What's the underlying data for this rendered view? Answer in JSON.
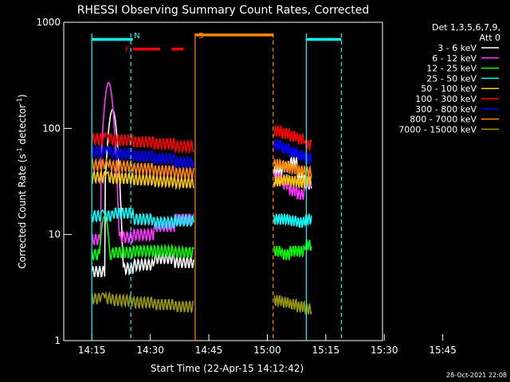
{
  "chart_data": {
    "type": "line",
    "title": "RHESSI Observing Summary Count Rates, Corrected",
    "xlabel": "Start Time (22-Apr-15 14:12:42)",
    "ylabel": "Corrected Count Rate (s",
    "ylabel_sup1": "-1",
    "ylabel_mid": " detector",
    "ylabel_sup2": "-1",
    "ylabel_end": ")",
    "y_scale": "log",
    "ylim": [
      1,
      1000
    ],
    "xlim_minutes": [
      0,
      68
    ],
    "x_ticks": [
      {
        "label": "14:15",
        "min": 2.3
      },
      {
        "label": "14:30",
        "min": 17.3
      },
      {
        "label": "14:45",
        "min": 32.3
      },
      {
        "label": "15:00",
        "min": 47.3
      },
      {
        "label": "15:15",
        "min": 62.3
      },
      {
        "label": "15:30",
        "min": 77.3
      },
      {
        "label": "15:45",
        "min": 92.3
      }
    ],
    "y_ticks": [
      {
        "label": "1",
        "value": 1
      },
      {
        "label": "10",
        "value": 10
      },
      {
        "label": "100",
        "value": 100
      },
      {
        "label": "1000",
        "value": 1000
      }
    ],
    "legend_header": [
      "Det 1,3,5,6,7,9,",
      "Att 0"
    ],
    "footer_date": "28-Oct-2021 22:08",
    "data_gaps": [
      {
        "start": 0,
        "end": 7.2
      },
      {
        "start": 26.2,
        "end": 46.7
      },
      {
        "start": 56.3,
        "end": 68
      }
    ],
    "series": [
      {
        "name": "3 - 6 keV",
        "color": "#ffffff",
        "base": [
          4.5,
          4.8,
          5.2,
          6.0,
          5.5,
          40,
          44,
          48,
          35,
          30
        ],
        "peak": 150,
        "peak_min": 12.5
      },
      {
        "name": "6 - 12 keV",
        "color": "#ff33ff",
        "base": [
          9,
          9.5,
          10,
          12,
          14,
          34,
          30,
          26,
          24,
          32
        ],
        "peak": 270,
        "peak_min": 11.5
      },
      {
        "name": "12 - 25 keV",
        "color": "#00ff00",
        "base": [
          6.5,
          6.8,
          7,
          7,
          6.8,
          7,
          6.5,
          7,
          7,
          8
        ],
        "peak": 15,
        "peak_min": 10.5
      },
      {
        "name": "25 - 50 keV",
        "color": "#00ffff",
        "base": [
          15,
          16,
          14,
          13,
          13.5,
          14,
          14,
          13.5,
          13,
          14
        ],
        "peak": 17,
        "peak_min": 10
      },
      {
        "name": "50 - 100 keV",
        "color": "#ffcc00",
        "base": [
          35,
          34,
          33,
          32,
          31,
          32,
          33,
          32,
          31,
          33
        ],
        "peak": 38,
        "peak_min": 11
      },
      {
        "name": "100 - 300 keV",
        "color": "#ff0000",
        "base": [
          80,
          78,
          75,
          72,
          68,
          95,
          90,
          85,
          80,
          70
        ],
        "peak": 90,
        "peak_min": 11
      },
      {
        "name": "300 - 800 keV",
        "color": "#0000ff",
        "base": [
          60,
          58,
          55,
          52,
          48,
          70,
          65,
          60,
          56,
          52
        ],
        "peak": 64,
        "peak_min": 11
      },
      {
        "name": "800 - 7000 keV",
        "color": "#ff8800",
        "base": [
          45,
          44,
          42,
          40,
          38,
          46,
          44,
          42,
          40,
          39
        ],
        "peak": 48,
        "peak_min": 11
      },
      {
        "name": "7000 - 15000 keV",
        "color": "#999900",
        "base": [
          2.5,
          2.4,
          2.3,
          2.2,
          2.1,
          2.4,
          2.3,
          2.2,
          2.1,
          2.0
        ],
        "peak": 2.8,
        "peak_min": 10
      }
    ],
    "vertical_markers": [
      {
        "min": 0,
        "color": "#00ffff",
        "style": "solid",
        "label": ""
      },
      {
        "min": 10,
        "color": "#00ffff",
        "style": "dash",
        "label": "N"
      },
      {
        "min": 26.5,
        "color": "#ff8800",
        "style": "solid",
        "label": "S"
      },
      {
        "min": 46.5,
        "color": "#ff8800",
        "style": "dash",
        "label": ""
      },
      {
        "min": 55,
        "color": "#00ffff",
        "style": "solid",
        "label": ""
      },
      {
        "min": 64,
        "color": "#00ffff",
        "style": "dash",
        "label": ""
      }
    ],
    "bars": [
      {
        "color": "#00ffff",
        "start": 0,
        "end": 10.5,
        "level": 690
      },
      {
        "color": "#ff8800",
        "start": 26.5,
        "end": 46.5,
        "level": 760
      },
      {
        "color": "#00ffff",
        "start": 55,
        "end": 64,
        "level": 690
      },
      {
        "color": "#ff0000",
        "start": 10.5,
        "end": 17.5,
        "level": 560,
        "label": "F"
      },
      {
        "color": "#ff0000",
        "start": 20.5,
        "end": 23.5,
        "level": 560
      }
    ]
  }
}
